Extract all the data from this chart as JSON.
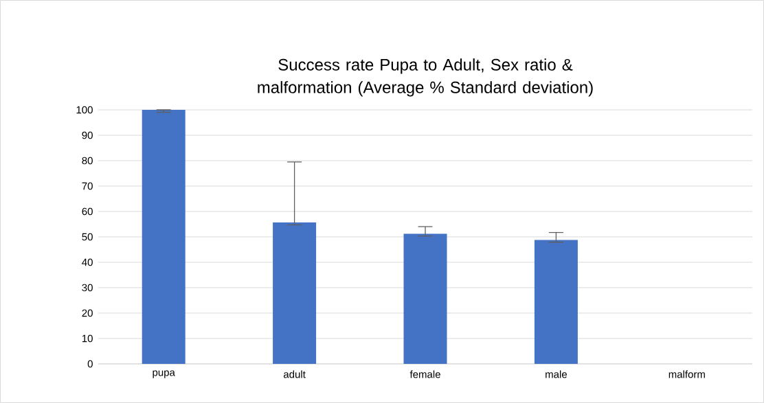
{
  "chart_data": {
    "type": "bar",
    "title": "Success rate Pupa to Adult, Sex ratio & malformation (Average % Standard deviation)",
    "categories": [
      "pupa",
      "adult",
      "female",
      "male",
      "malform"
    ],
    "values": [
      100,
      55.7,
      51.2,
      48.8,
      0
    ],
    "errors": [
      [
        99.0,
        100
      ],
      [
        54.7,
        79.5
      ],
      [
        50.3,
        54.0
      ],
      [
        47.9,
        51.7
      ],
      null
    ],
    "color": "#4472c4",
    "ylim": [
      0,
      100
    ],
    "yticks": [
      0,
      10,
      20,
      30,
      40,
      50,
      60,
      70,
      80,
      90,
      100
    ],
    "grid": "y"
  }
}
